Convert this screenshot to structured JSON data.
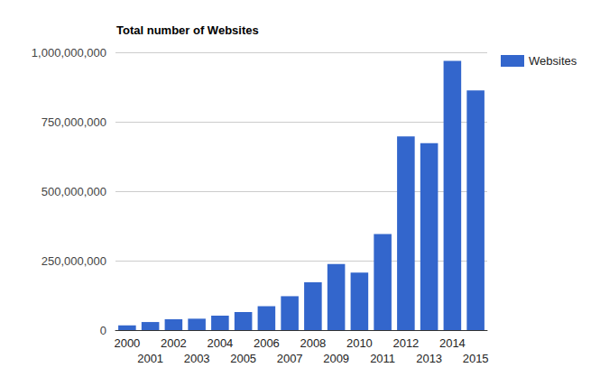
{
  "chart_data": {
    "type": "bar",
    "title": "Total number of Websites",
    "categories": [
      "2000",
      "2001",
      "2002",
      "2003",
      "2004",
      "2005",
      "2006",
      "2007",
      "2008",
      "2009",
      "2010",
      "2011",
      "2012",
      "2013",
      "2014",
      "2015"
    ],
    "series": [
      {
        "name": "Websites",
        "color": "#3366cc",
        "values": [
          17000000,
          29000000,
          39000000,
          41000000,
          52000000,
          65000000,
          86000000,
          122000000,
          172000000,
          238000000,
          207000000,
          346000000,
          697000000,
          673000000,
          969000000,
          863000000
        ]
      }
    ],
    "ylim": [
      0,
      1000000000
    ],
    "yticks": [
      0,
      {
        "value": 250000000,
        "label": "250,000,000"
      },
      {
        "value": 500000000,
        "label": "500,000,000"
      },
      {
        "value": 750000000,
        "label": "750,000,000"
      },
      {
        "value": 1000000000,
        "label": "1,000,000,000"
      }
    ],
    "grid": true,
    "legend": "top-right"
  }
}
